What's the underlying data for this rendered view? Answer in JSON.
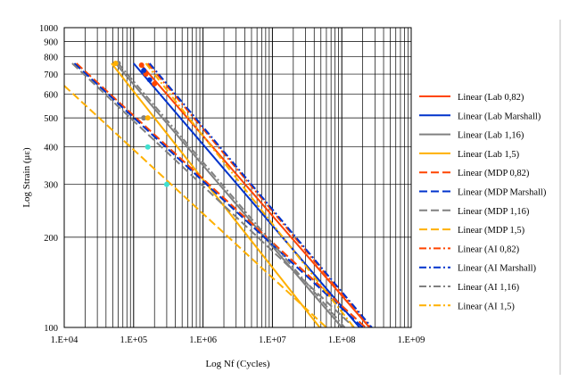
{
  "chart_data": {
    "type": "line",
    "title": "",
    "xlabel": "Log Nf (Cycles)",
    "ylabel": "Log Strain (με)",
    "x_scale": "log",
    "y_scale": "log",
    "xlim": [
      10000,
      1000000000
    ],
    "ylim": [
      100,
      1000
    ],
    "grid": true,
    "legend_position": "right",
    "x_ticks": [
      {
        "value": 10000,
        "label": "1.E+04"
      },
      {
        "value": 100000,
        "label": "1.E+05"
      },
      {
        "value": 1000000,
        "label": "1.E+06"
      },
      {
        "value": 10000000,
        "label": "1.E+07"
      },
      {
        "value": 100000000,
        "label": "1.E+08"
      },
      {
        "value": 1000000000,
        "label": "1.E+09"
      }
    ],
    "y_ticks": [
      {
        "value": 100,
        "label": "100"
      },
      {
        "value": 200,
        "label": "200"
      },
      {
        "value": 300,
        "label": "300"
      },
      {
        "value": 400,
        "label": "400"
      },
      {
        "value": 500,
        "label": "500"
      },
      {
        "value": 600,
        "label": "600"
      },
      {
        "value": 700,
        "label": "700"
      },
      {
        "value": 800,
        "label": "800"
      },
      {
        "value": 900,
        "label": "900"
      },
      {
        "value": 1000,
        "label": "1000"
      }
    ],
    "series": [
      {
        "name": "Linear (Lab 0,82)",
        "color": "#ff4500",
        "dash": "solid",
        "x": [
          130000,
          250000000
        ],
        "y": [
          750,
          100
        ]
      },
      {
        "name": "Linear (Lab Marshall)",
        "color": "#0033cc",
        "dash": "solid",
        "x": [
          100000,
          180000000
        ],
        "y": [
          760,
          100
        ]
      },
      {
        "name": "Linear (Lab 1,16)",
        "color": "#808080",
        "dash": "solid",
        "x": [
          55000,
          100000000
        ],
        "y": [
          760,
          100
        ]
      },
      {
        "name": "Linear (Lab 1,5)",
        "color": "#ffb000",
        "dash": "solid",
        "x": [
          48000,
          48000000
        ],
        "y": [
          760,
          100
        ]
      },
      {
        "name": "Linear (MDP 0,82)",
        "color": "#ff4500",
        "dash": "longdash",
        "x": [
          15000,
          220000000
        ],
        "y": [
          760,
          100
        ]
      },
      {
        "name": "Linear (MDP Marshall)",
        "color": "#0033cc",
        "dash": "longdash",
        "x": [
          14000,
          200000000
        ],
        "y": [
          760,
          100
        ]
      },
      {
        "name": "Linear (MDP 1,16)",
        "color": "#808080",
        "dash": "longdash",
        "x": [
          13000,
          150000000
        ],
        "y": [
          760,
          100
        ]
      },
      {
        "name": "Linear (MDP 1,5)",
        "color": "#ffb000",
        "dash": "longdash",
        "x": [
          10000,
          60000000
        ],
        "y": [
          640,
          100
        ]
      },
      {
        "name": "Linear (AI 0,82)",
        "color": "#ff4500",
        "dash": "dashdot",
        "x": [
          160000,
          260000000
        ],
        "y": [
          760,
          100
        ]
      },
      {
        "name": "Linear (AI Marshall)",
        "color": "#0033cc",
        "dash": "dashdot",
        "x": [
          170000,
          270000000
        ],
        "y": [
          760,
          100
        ]
      },
      {
        "name": "Linear (AI 1,16)",
        "color": "#808080",
        "dash": "dashdot",
        "x": [
          60000,
          110000000
        ],
        "y": [
          760,
          100
        ]
      },
      {
        "name": "Linear (AI 1,5)",
        "color": "#ffb000",
        "dash": "dashdot",
        "x": [
          150000,
          150000000
        ],
        "y": [
          760,
          100
        ]
      }
    ],
    "points": [
      {
        "color": "#ff4500",
        "x": [
          130000,
          150000,
          200000
        ],
        "y": [
          750,
          700,
          650
        ]
      },
      {
        "color": "#0033cc",
        "x": [
          140000,
          170000
        ],
        "y": [
          720,
          670
        ]
      },
      {
        "color": "#808080",
        "x": [
          60000,
          140000
        ],
        "y": [
          760,
          500
        ]
      },
      {
        "color": "#ffb000",
        "x": [
          55000,
          160000
        ],
        "y": [
          760,
          500
        ]
      },
      {
        "color": "#40e0d0",
        "x": [
          160000,
          300000
        ],
        "y": [
          400,
          300
        ]
      }
    ]
  }
}
